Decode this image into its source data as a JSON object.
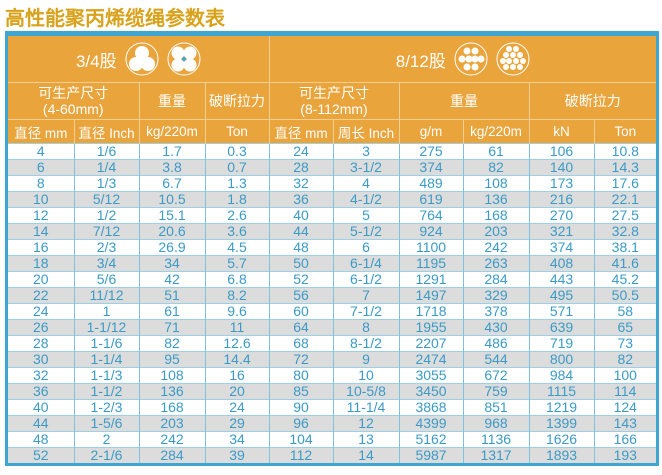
{
  "title": "高性能聚丙烯缆绳参数表",
  "colors": {
    "header": "#e9a43c",
    "border": "#3fa6d2",
    "text": "#3b9bc6",
    "title": "#d9a21c",
    "stripe": "#dcdcdc"
  },
  "groups": [
    {
      "label": "3/4股",
      "icons": [
        "three-strand-icon",
        "four-strand-icon"
      ]
    },
    {
      "label": "8/12股",
      "icons": [
        "eight-strand-icon",
        "twelve-strand-icon"
      ]
    }
  ],
  "subheaders": {
    "left": {
      "size": "可生产尺寸",
      "size_range": "(4-60mm)",
      "weight": "重量",
      "strength": "破断拉力"
    },
    "right": {
      "size": "可生产尺寸",
      "size_range": "(8-112mm)",
      "weight": "重量",
      "strength": "破断拉力"
    }
  },
  "columns": [
    "直径 mm",
    "直径 Inch",
    "kg/220m",
    "Ton",
    "直径 mm",
    "周长 Inch",
    "g/m",
    "kg/220m",
    "kN",
    "Ton"
  ],
  "rows": [
    [
      "4",
      "1/6",
      "1.7",
      "0.3",
      "24",
      "3",
      "275",
      "61",
      "106",
      "10.8"
    ],
    [
      "6",
      "1/4",
      "3.8",
      "0.7",
      "28",
      "3-1/2",
      "374",
      "82",
      "140",
      "14.3"
    ],
    [
      "8",
      "1/3",
      "6.7",
      "1.3",
      "32",
      "4",
      "489",
      "108",
      "173",
      "17.6"
    ],
    [
      "10",
      "5/12",
      "10.5",
      "1.8",
      "36",
      "4-1/2",
      "619",
      "136",
      "216",
      "22.1"
    ],
    [
      "12",
      "1/2",
      "15.1",
      "2.6",
      "40",
      "5",
      "764",
      "168",
      "270",
      "27.5"
    ],
    [
      "14",
      "7/12",
      "20.6",
      "3.6",
      "44",
      "5-1/2",
      "924",
      "203",
      "321",
      "32.8"
    ],
    [
      "16",
      "2/3",
      "26.9",
      "4.5",
      "48",
      "6",
      "1100",
      "242",
      "374",
      "38.1"
    ],
    [
      "18",
      "3/4",
      "34",
      "5.7",
      "50",
      "6-1/4",
      "1195",
      "263",
      "408",
      "41.6"
    ],
    [
      "20",
      "5/6",
      "42",
      "6.8",
      "52",
      "6-1/2",
      "1291",
      "284",
      "443",
      "45.2"
    ],
    [
      "22",
      "11/12",
      "51",
      "8.2",
      "56",
      "7",
      "1497",
      "329",
      "495",
      "50.5"
    ],
    [
      "24",
      "1",
      "61",
      "9.6",
      "60",
      "7-1/2",
      "1718",
      "378",
      "571",
      "58"
    ],
    [
      "26",
      "1-1/12",
      "71",
      "11",
      "64",
      "8",
      "1955",
      "430",
      "639",
      "65"
    ],
    [
      "28",
      "1-1/6",
      "82",
      "12.6",
      "68",
      "8-1/2",
      "2207",
      "486",
      "719",
      "73"
    ],
    [
      "30",
      "1-1/4",
      "95",
      "14.4",
      "72",
      "9",
      "2474",
      "544",
      "800",
      "82"
    ],
    [
      "32",
      "1-1/3",
      "108",
      "16",
      "80",
      "10",
      "3055",
      "672",
      "984",
      "100"
    ],
    [
      "36",
      "1-1/2",
      "136",
      "20",
      "85",
      "10-5/8",
      "3450",
      "759",
      "1115",
      "114"
    ],
    [
      "40",
      "1-2/3",
      "168",
      "24",
      "90",
      "11-1/4",
      "3868",
      "851",
      "1219",
      "124"
    ],
    [
      "44",
      "1-5/6",
      "203",
      "29",
      "96",
      "12",
      "4399",
      "968",
      "1399",
      "143"
    ],
    [
      "48",
      "2",
      "242",
      "34",
      "104",
      "13",
      "5162",
      "1136",
      "1626",
      "166"
    ],
    [
      "52",
      "2-1/6",
      "284",
      "39",
      "112",
      "14",
      "5987",
      "1317",
      "1893",
      "193"
    ]
  ]
}
